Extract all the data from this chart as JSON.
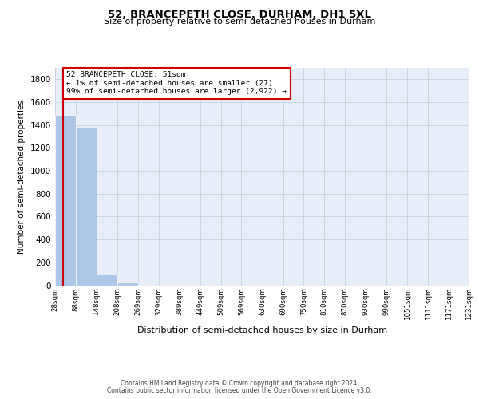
{
  "title1": "52, BRANCEPETH CLOSE, DURHAM, DH1 5XL",
  "title2": "Size of property relative to semi-detached houses in Durham",
  "xlabel": "Distribution of semi-detached houses by size in Durham",
  "ylabel": "Number of semi-detached properties",
  "footer1": "Contains HM Land Registry data © Crown copyright and database right 2024.",
  "footer2": "Contains public sector information licensed under the Open Government Licence v3.0.",
  "property_size": 51,
  "annotation_line1": "52 BRANCEPETH CLOSE: 51sqm",
  "annotation_line2": "← 1% of semi-detached houses are smaller (27)",
  "annotation_line3": "99% of semi-detached houses are larger (2,922) →",
  "bar_color": "#aec6e8",
  "property_line_color": "#cc0000",
  "annotation_box_color": "#cc0000",
  "grid_color": "#c8d4e8",
  "background_color": "#e8eef8",
  "ylim": [
    0,
    1900
  ],
  "yticks": [
    0,
    200,
    400,
    600,
    800,
    1000,
    1200,
    1400,
    1600,
    1800
  ],
  "bin_edges": [
    28,
    88,
    148,
    208,
    269,
    329,
    389,
    449,
    509,
    569,
    630,
    690,
    750,
    810,
    870,
    930,
    990,
    1051,
    1111,
    1171,
    1231
  ],
  "bin_labels": [
    "28sqm",
    "88sqm",
    "148sqm",
    "208sqm",
    "269sqm",
    "329sqm",
    "389sqm",
    "449sqm",
    "509sqm",
    "569sqm",
    "630sqm",
    "690sqm",
    "750sqm",
    "810sqm",
    "870sqm",
    "930sqm",
    "990sqm",
    "1051sqm",
    "1111sqm",
    "1171sqm",
    "1231sqm"
  ],
  "bar_heights": [
    1490,
    1380,
    95,
    27,
    0,
    0,
    0,
    0,
    0,
    0,
    0,
    0,
    0,
    0,
    0,
    0,
    0,
    0,
    0,
    0
  ]
}
